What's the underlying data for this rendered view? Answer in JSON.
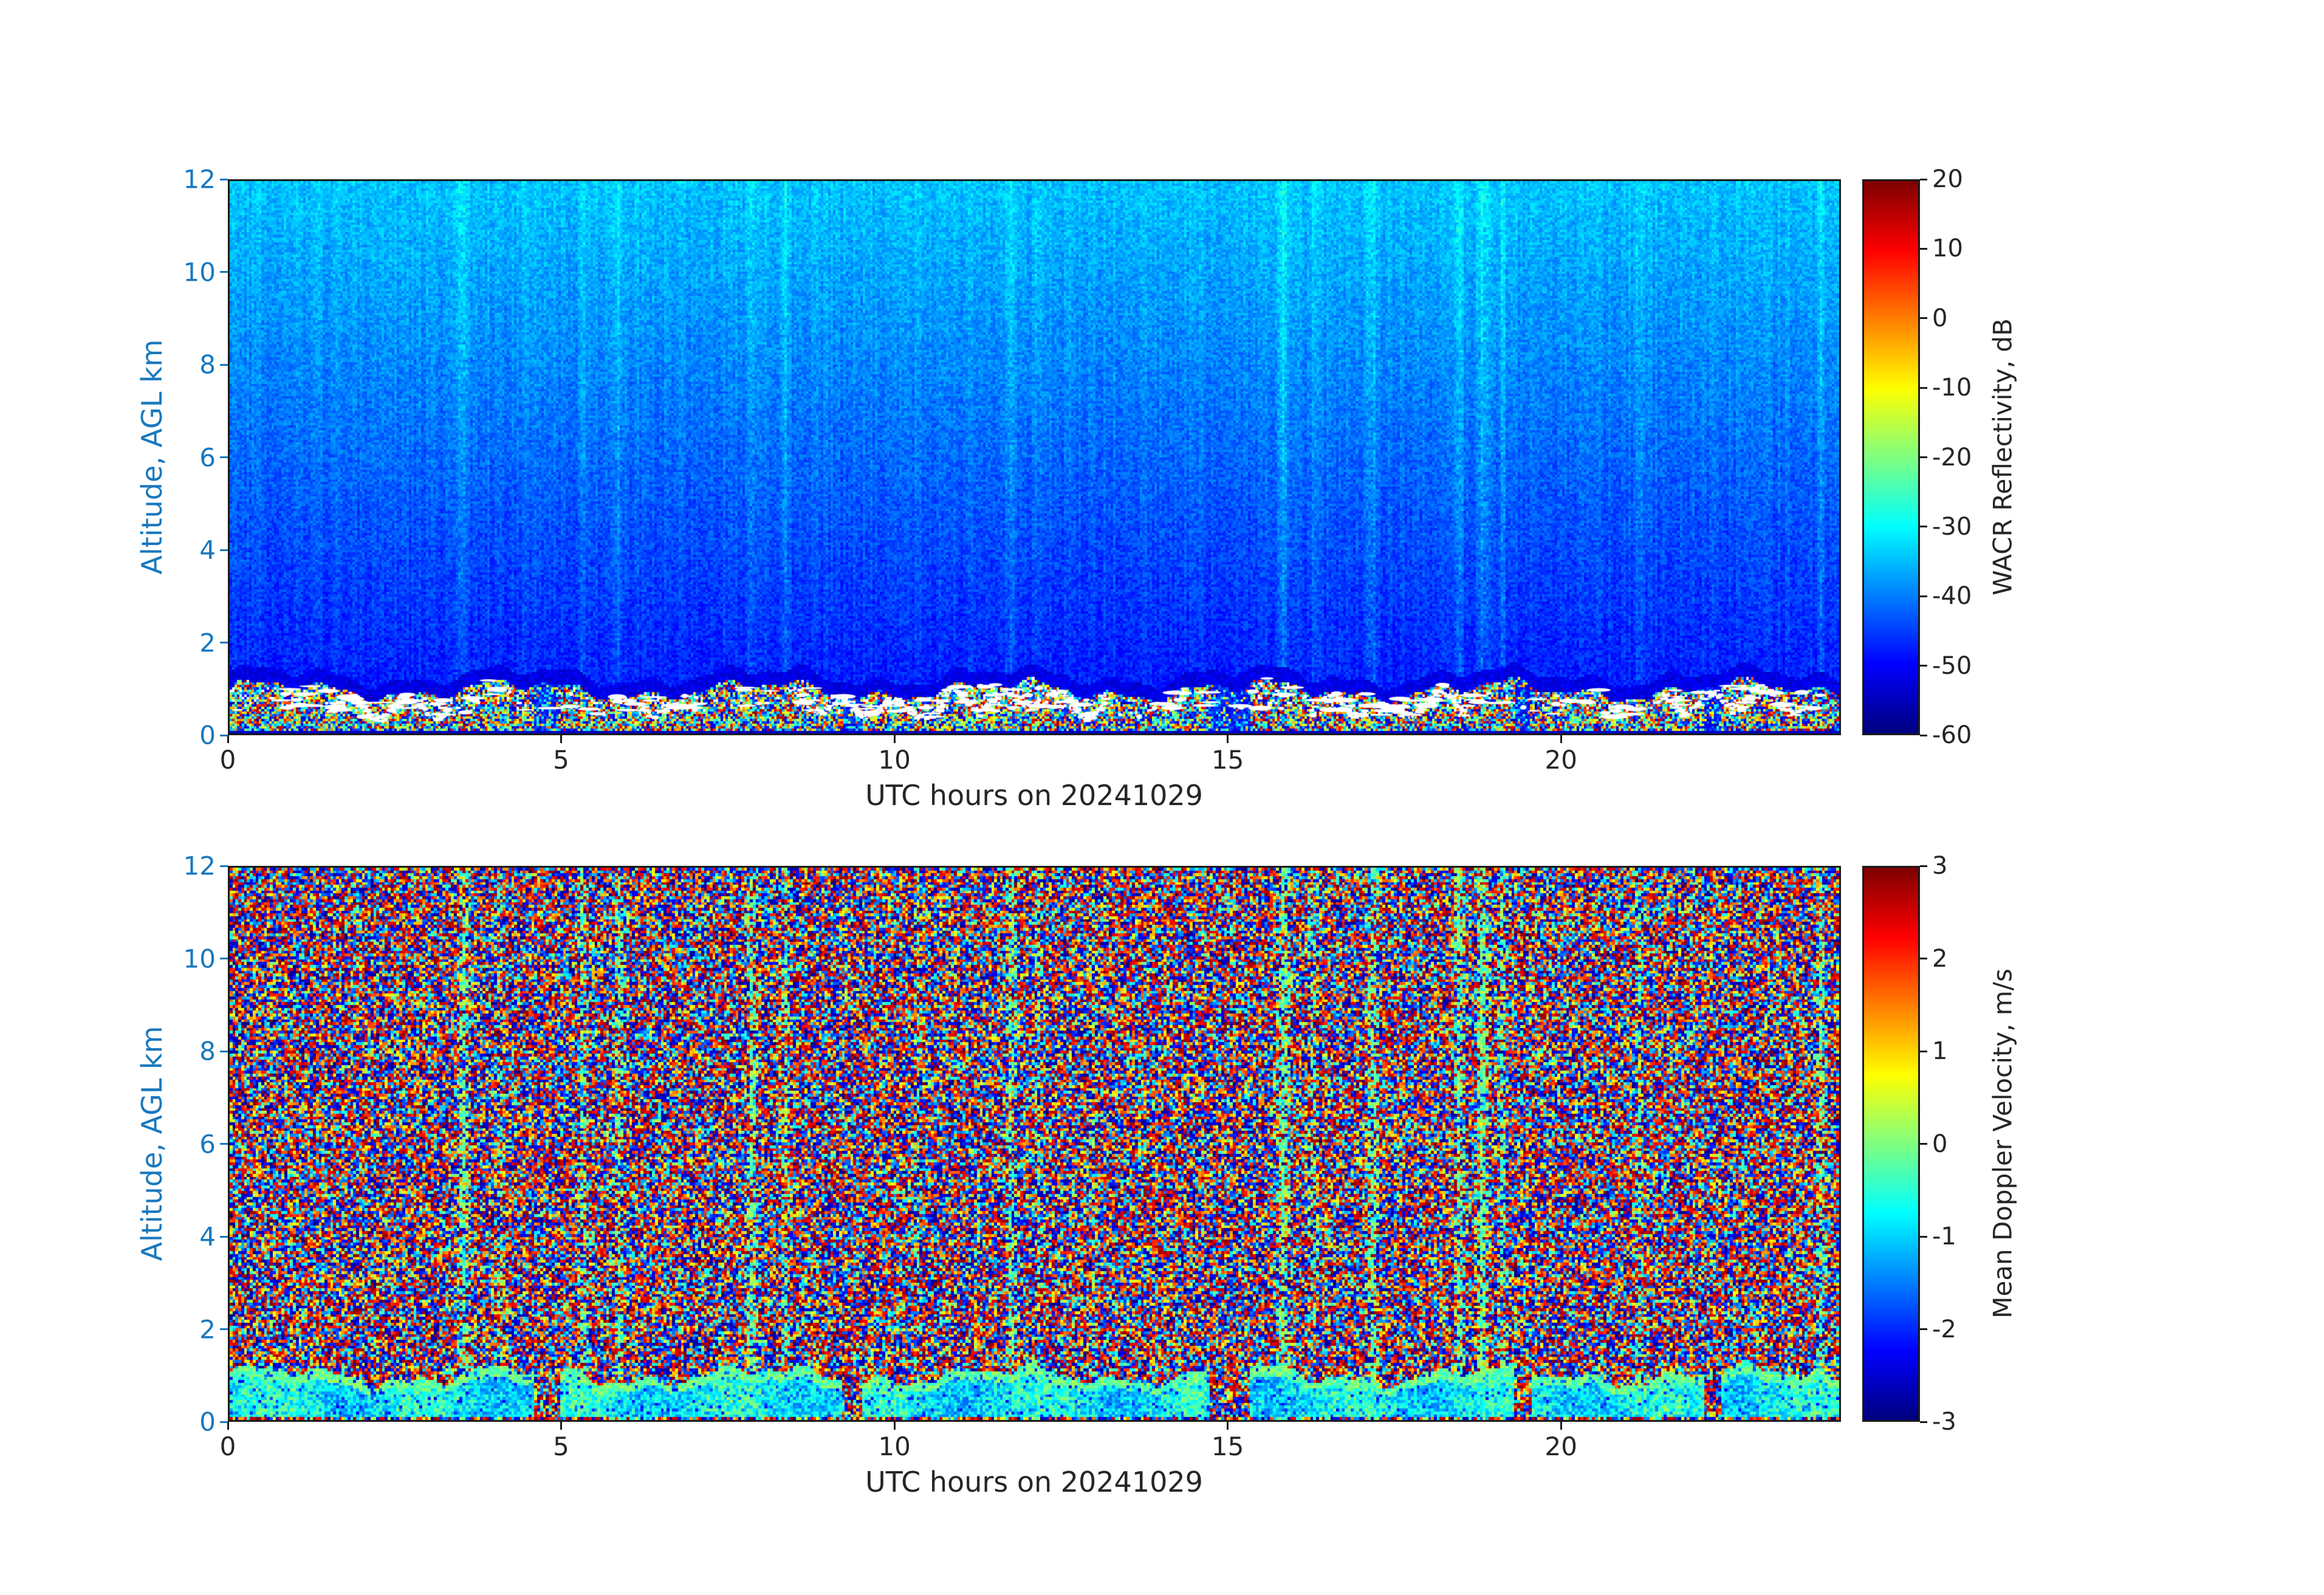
{
  "figure": {
    "title": "",
    "background_color": "#ffffff",
    "y_axis_text_color": "#1878be",
    "x_axis_text_color": "#262626",
    "colormap_name": "jet"
  },
  "chart_data": [
    {
      "type": "heatmap",
      "panel": "top",
      "title": "",
      "xlabel": "UTC hours on 20241029",
      "ylabel": "Altitude, AGL km",
      "xlim": [
        0,
        24.2
      ],
      "ylim": [
        0,
        12
      ],
      "xticks": [
        0,
        5,
        10,
        15,
        20
      ],
      "yticks": [
        0,
        2,
        4,
        6,
        8,
        10,
        12
      ],
      "colormap": "jet",
      "colorbar": {
        "label": "WACR Reflectivity, dB",
        "min": -60,
        "max": 20,
        "ticks": [
          20,
          10,
          0,
          -10,
          -20,
          -30,
          -40,
          -50,
          -60
        ]
      },
      "content": {
        "description": "W-band cloud radar reflectivity time-height section: clear-air noise background brightening with altitude from about -48 dB near 1.5 km to about -35 dB at 12 km (cyan), a dark low-signal band near 1.1-1.4 km, and a strong boundary-layer echo below about 1.1 km with reflectivities spanning -55 to +20 dB including saturated white patches near the layer top; faint enhanced vertical columns at several times.",
        "noise_floor_db_at_12km": -35,
        "noise_floor_db_at_2km": -46,
        "clear_band_km": [
          1.1,
          1.4
        ],
        "boundary_layer_top_km": 1.1,
        "boundary_layer_db_range": [
          -55,
          20
        ],
        "weak_layer_intervals_utc": [
          [
            4.55,
            4.95
          ],
          [
            9.2,
            9.5
          ],
          [
            14.75,
            15.35
          ],
          [
            19.35,
            19.6
          ],
          [
            22.2,
            22.45
          ]
        ],
        "enhanced_columns": [
          [
            3.5,
            0.12,
            0.5
          ],
          [
            4.05,
            0.08,
            0.3
          ],
          [
            5.3,
            0.1,
            0.35
          ],
          [
            5.85,
            0.1,
            0.45
          ],
          [
            7.85,
            0.12,
            0.5
          ],
          [
            8.35,
            0.1,
            0.45
          ],
          [
            10.35,
            0.08,
            0.25
          ],
          [
            11.75,
            0.12,
            0.5
          ],
          [
            12.15,
            0.07,
            0.3
          ],
          [
            13.0,
            0.06,
            0.2
          ],
          [
            15.85,
            0.13,
            0.6
          ],
          [
            16.3,
            0.08,
            0.35
          ],
          [
            17.2,
            0.12,
            0.55
          ],
          [
            18.5,
            0.1,
            0.6
          ],
          [
            18.85,
            0.12,
            0.7
          ],
          [
            19.15,
            0.08,
            0.5
          ],
          [
            21.2,
            0.09,
            0.35
          ],
          [
            22.0,
            0.06,
            0.2
          ],
          [
            23.95,
            0.1,
            0.5
          ]
        ]
      }
    },
    {
      "type": "heatmap",
      "panel": "bottom",
      "title": "",
      "xlabel": "UTC hours on 20241029",
      "ylabel": "Altitude, AGL km",
      "xlim": [
        0,
        24.2
      ],
      "ylim": [
        0,
        12
      ],
      "xticks": [
        0,
        5,
        10,
        15,
        20
      ],
      "yticks": [
        0,
        2,
        4,
        6,
        8,
        10,
        12
      ],
      "colormap": "jet",
      "colorbar": {
        "label": "Mean Doppler Velocity, m/s",
        "min": -3,
        "max": 3,
        "ticks": [
          3,
          2,
          1,
          0,
          -1,
          -2,
          -3
        ]
      },
      "content": {
        "description": "Mean Doppler velocity time-height section: incoherent speckle noise with velocities spread across the full ±3 m/s interval (dark blue / dark red mottle) above the boundary layer, greenish near-zero-velocity vertical columns at the same times as the reflectivity enhancements, and a coherent cyan-green layer below about 1 km with velocities mostly between -1.5 and +0.3 m/s.",
        "noise": "uniform random velocities across ±3 m/s Nyquist interval",
        "boundary_layer_velocity_ms": [
          -1.5,
          0.3
        ],
        "boundary_layer_top_km": 1.0,
        "weak_layer_intervals_utc": [
          [
            4.55,
            4.95
          ],
          [
            9.2,
            9.5
          ],
          [
            14.75,
            15.35
          ],
          [
            19.35,
            19.6
          ],
          [
            22.2,
            22.45
          ]
        ],
        "enhanced_columns": [
          [
            3.5,
            0.12,
            0.5
          ],
          [
            4.05,
            0.08,
            0.3
          ],
          [
            5.3,
            0.1,
            0.35
          ],
          [
            5.85,
            0.1,
            0.45
          ],
          [
            7.85,
            0.12,
            0.5
          ],
          [
            8.35,
            0.1,
            0.45
          ],
          [
            10.35,
            0.08,
            0.25
          ],
          [
            11.75,
            0.12,
            0.5
          ],
          [
            12.15,
            0.07,
            0.3
          ],
          [
            13.0,
            0.06,
            0.2
          ],
          [
            15.85,
            0.13,
            0.6
          ],
          [
            16.3,
            0.08,
            0.35
          ],
          [
            17.2,
            0.12,
            0.55
          ],
          [
            18.5,
            0.1,
            0.6
          ],
          [
            18.85,
            0.12,
            0.7
          ],
          [
            19.15,
            0.08,
            0.5
          ],
          [
            21.2,
            0.09,
            0.35
          ],
          [
            22.0,
            0.06,
            0.2
          ],
          [
            23.95,
            0.1,
            0.5
          ]
        ]
      }
    }
  ]
}
